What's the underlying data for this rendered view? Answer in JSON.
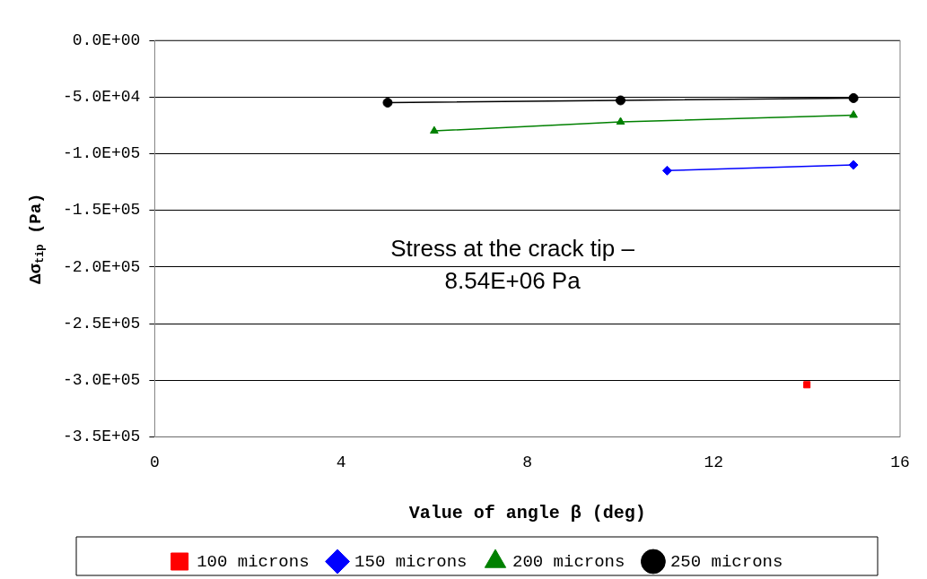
{
  "chart_data": {
    "type": "line",
    "xlabel": "Value of angle β (deg)",
    "ylabel": "Δσ$_{tip}$ (Pa)",
    "xlim": [
      0,
      16
    ],
    "xticks": [
      0,
      4,
      8,
      12,
      16
    ],
    "ylim": [
      -350000,
      0
    ],
    "yticks": [
      {
        "value": 0,
        "label": "0.0E+00"
      },
      {
        "value": -50000,
        "label": "-5.0E+04"
      },
      {
        "value": -100000,
        "label": "-1.0E+05"
      },
      {
        "value": -150000,
        "label": "-1.5E+05"
      },
      {
        "value": -200000,
        "label": "-2.0E+05"
      },
      {
        "value": -250000,
        "label": "-2.5E+05"
      },
      {
        "value": -300000,
        "label": "-3.0E+05"
      },
      {
        "value": -350000,
        "label": "-3.5E+05"
      }
    ],
    "grid": "y",
    "legend": "bottom",
    "line_style": "solid",
    "annotations": [
      "Stress at the crack tip –\n8.54E+06 Pa"
    ],
    "series": [
      {
        "name": "100 microns",
        "color": "#ff0000",
        "marker": "square",
        "x": [
          14
        ],
        "values": [
          -304000
        ]
      },
      {
        "name": "150 microns",
        "color": "#0000ff",
        "marker": "diamond",
        "x": [
          11,
          15
        ],
        "values": [
          -115000,
          -110000
        ]
      },
      {
        "name": "200 microns",
        "color": "#008000",
        "marker": "triangle",
        "x": [
          6,
          10,
          15
        ],
        "values": [
          -80000,
          -72000,
          -66000
        ]
      },
      {
        "name": "250 microns",
        "color": "#000000",
        "marker": "circle",
        "x": [
          5,
          10,
          15
        ],
        "values": [
          -55000,
          -53000,
          -51000
        ]
      }
    ]
  }
}
